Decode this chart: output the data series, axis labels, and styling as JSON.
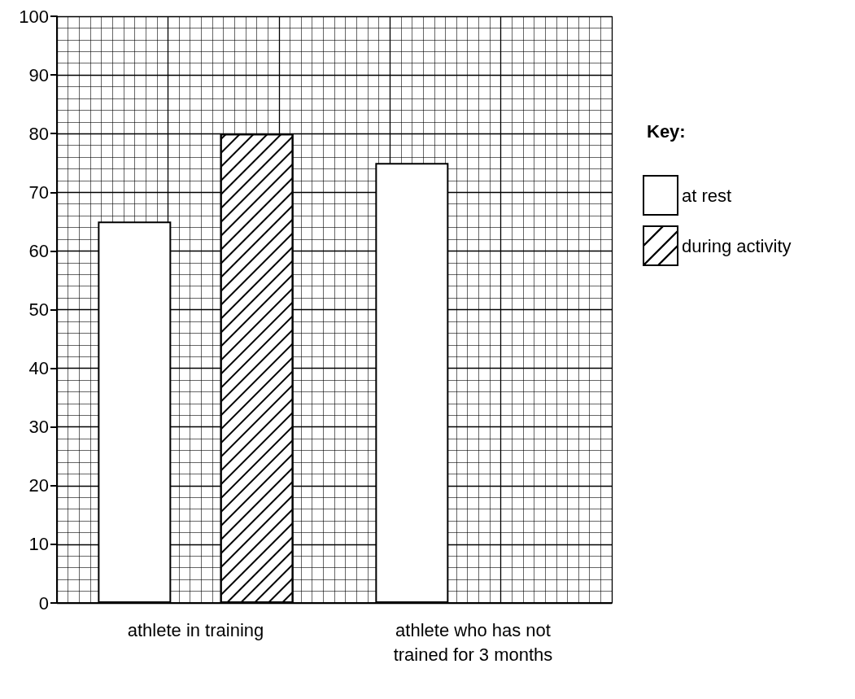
{
  "chart_data": {
    "type": "bar",
    "categories": [
      "athlete in training",
      "athlete who has not\ntrained for 3 months"
    ],
    "series": [
      {
        "name": "at rest",
        "color": "#ffffff",
        "values": [
          65,
          75
        ]
      },
      {
        "name": "during activity",
        "color": "#ffffff",
        "values": [
          80,
          null
        ]
      }
    ],
    "ylim": [
      0,
      100
    ],
    "yticks": [
      0,
      10,
      20,
      30,
      40,
      50,
      60,
      70,
      80,
      90,
      100
    ],
    "grid": true,
    "legend": "right",
    "legend_title": "Key:"
  }
}
